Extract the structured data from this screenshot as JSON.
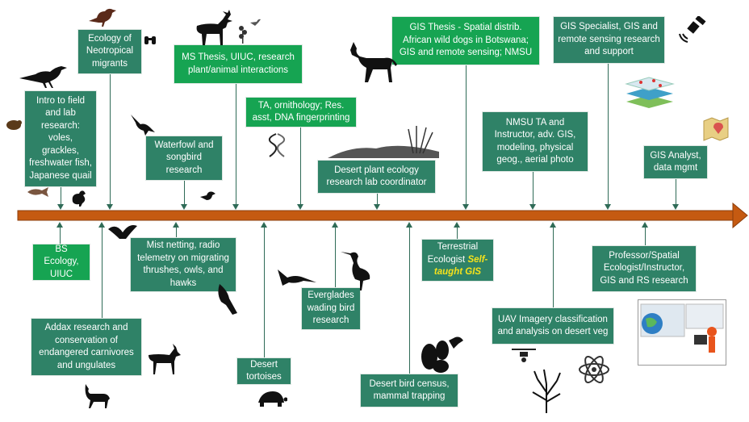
{
  "colors": {
    "timeline": "#c55a11",
    "teal_box": "#2f8267",
    "bright_box": "#16a452",
    "highlight": "#f5e21c"
  },
  "top_boxes": [
    {
      "id": "intro",
      "text": "Intro to field and lab research: voles, grackles, freshwater fish, Japanese quail"
    },
    {
      "id": "neotropical",
      "text": "Ecology of Neotropical migrants"
    },
    {
      "id": "waterfowl",
      "text": "Waterfowl and songbird research"
    },
    {
      "id": "ms-thesis",
      "text": "MS Thesis, UIUC, research plant/animal interactions"
    },
    {
      "id": "ta-ornithology",
      "text": "TA, ornithology; Res. asst, DNA fingerprinting"
    },
    {
      "id": "desert-plant",
      "text": "Desert plant ecology research lab coordinator"
    },
    {
      "id": "gis-thesis",
      "text": "GIS Thesis - Spatial distrib. African wild dogs in Botswana; GIS and remote sensing; NMSU"
    },
    {
      "id": "nmsu-ta",
      "text": "NMSU TA and Instructor, adv. GIS, modeling, physical geog., aerial photo"
    },
    {
      "id": "gis-specialist",
      "text": "GIS Specialist, GIS and remote sensing research and support"
    },
    {
      "id": "gis-analyst",
      "text": "GIS Analyst, data mgmt"
    }
  ],
  "bottom_boxes": [
    {
      "id": "bs-ecology",
      "text": "BS Ecology, UIUC"
    },
    {
      "id": "addax",
      "text": "Addax research and conservation of endangered carnivores and ungulates"
    },
    {
      "id": "mist-netting",
      "text": "Mist netting, radio telemetry on migrating thrushes, owls, and hawks"
    },
    {
      "id": "tortoises",
      "text": "Desert tortoises"
    },
    {
      "id": "everglades",
      "text": "Everglades wading bird research"
    },
    {
      "id": "bird-census",
      "text": "Desert bird census, mammal trapping"
    },
    {
      "id": "terrestrial",
      "text": "Terrestrial Ecologist",
      "highlight": "Self-taught GIS"
    },
    {
      "id": "uav",
      "text": "UAV Imagery classification and analysis on desert veg"
    },
    {
      "id": "professor",
      "text": "Professor/Spatial Ecologist/Instructor, GIS and RS research"
    }
  ]
}
